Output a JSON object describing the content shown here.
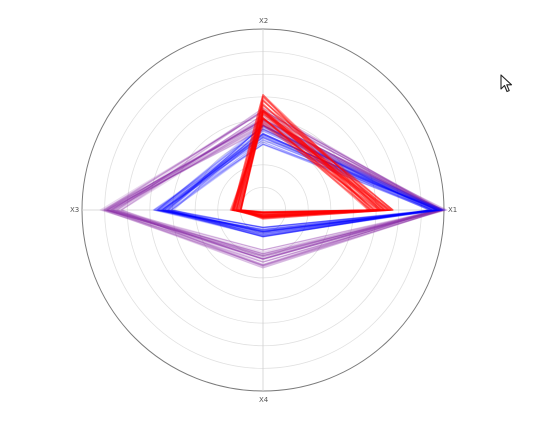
{
  "chart_data": {
    "type": "radar",
    "axes": [
      "X1",
      "X2",
      "X3",
      "X4"
    ],
    "r_range": [
      0,
      1
    ],
    "grid_rings": 8,
    "grid": true,
    "series": [
      {
        "color": "#ff0000",
        "style": "many-overlapping-lines",
        "values_typical": [
          0.65,
          0.55,
          0.15,
          0.03
        ],
        "values_spread": [
          0.07,
          0.09,
          0.03,
          0.02
        ]
      },
      {
        "color": "#0000ff",
        "style": "many-overlapping-lines",
        "values_typical": [
          0.96,
          0.42,
          0.55,
          0.12
        ],
        "values_spread": [
          0.05,
          0.06,
          0.06,
          0.03
        ]
      },
      {
        "color": "#8b2fa8",
        "style": "many-overlapping-lines",
        "values_typical": [
          0.98,
          0.5,
          0.84,
          0.27
        ],
        "values_spread": [
          0.04,
          0.07,
          0.06,
          0.05
        ]
      }
    ]
  },
  "colors": {
    "grid": "#e0e0e0",
    "outer_ring": "#7a7a7a",
    "axis": "#cfcfcf"
  },
  "cursor": {
    "icon": "mouse-pointer-icon"
  }
}
